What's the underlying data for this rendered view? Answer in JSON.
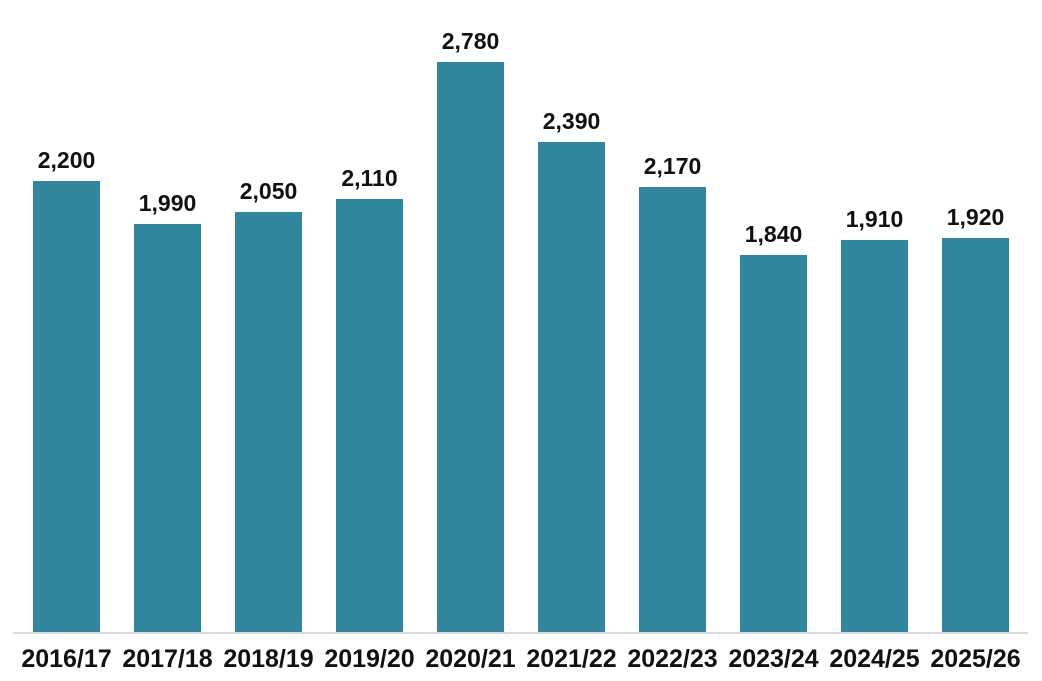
{
  "chart_data": {
    "type": "bar",
    "categories": [
      "2016/17",
      "2017/18",
      "2018/19",
      "2019/20",
      "2020/21",
      "2021/22",
      "2022/23",
      "2023/24",
      "2024/25",
      "2025/26"
    ],
    "values": [
      2200,
      1990,
      2050,
      2110,
      2780,
      2390,
      2170,
      1840,
      1910,
      1920
    ],
    "value_labels": [
      "2,200",
      "1,990",
      "2,050",
      "2,110",
      "2,780",
      "2,390",
      "2,170",
      "1,840",
      "1,910",
      "1,920"
    ],
    "ylim": [
      0,
      2780
    ],
    "bar_color": "#31859C",
    "axis_line_color": "#D9D9D9",
    "label_color": "#111111",
    "grid": false,
    "legend": false,
    "y_axis_visible": false
  }
}
